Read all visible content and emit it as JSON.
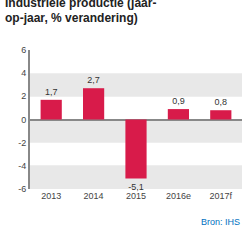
{
  "chart_data": {
    "type": "bar",
    "title": "Industriële productie (jaar-\nop-jaar, % verandering)",
    "categories": [
      "2013",
      "2014",
      "2015",
      "2016e",
      "2017f"
    ],
    "values": [
      1.7,
      2.7,
      -5.1,
      0.9,
      0.8
    ],
    "value_labels": [
      "1,7",
      "2,7",
      "-5,1",
      "0,9",
      "0,8"
    ],
    "data_labels": true,
    "color": "#d81b4a",
    "ylim": [
      -6,
      6
    ],
    "yticks": [
      -6,
      -4,
      -2,
      0,
      2,
      4,
      6
    ],
    "grid": true,
    "annotations": [
      {
        "text": "Bron: IHS",
        "color": "#0070c0"
      }
    ]
  }
}
